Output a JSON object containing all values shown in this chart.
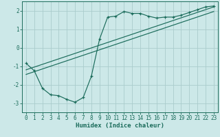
{
  "xlabel": "Humidex (Indice chaleur)",
  "bg_color": "#cce8e8",
  "grid_color": "#aacccc",
  "line_color": "#1a6b5a",
  "curve_x": [
    0,
    1,
    2,
    3,
    4,
    5,
    6,
    7,
    8,
    9,
    10,
    11,
    12,
    13,
    14,
    15,
    16,
    17,
    18,
    19,
    20,
    21,
    22,
    23
  ],
  "curve_y": [
    -0.85,
    -1.25,
    -2.2,
    -2.55,
    -2.6,
    -2.8,
    -2.95,
    -2.7,
    -1.55,
    0.45,
    1.65,
    1.7,
    1.95,
    1.85,
    1.85,
    1.7,
    1.6,
    1.65,
    1.65,
    1.75,
    1.9,
    2.05,
    2.2,
    2.25
  ],
  "line1_x": [
    0,
    23
  ],
  "line1_y": [
    -1.2,
    2.2
  ],
  "line2_x": [
    0,
    23
  ],
  "line2_y": [
    -1.45,
    1.95
  ],
  "xlim": [
    -0.5,
    23.5
  ],
  "ylim": [
    -3.5,
    2.5
  ],
  "xticks": [
    0,
    1,
    2,
    3,
    4,
    5,
    6,
    7,
    8,
    9,
    10,
    11,
    12,
    13,
    14,
    15,
    16,
    17,
    18,
    19,
    20,
    21,
    22,
    23
  ],
  "yticks": [
    -3,
    -2,
    -1,
    0,
    1,
    2
  ],
  "xlabel_fontsize": 6.5,
  "tick_fontsize": 5.5
}
